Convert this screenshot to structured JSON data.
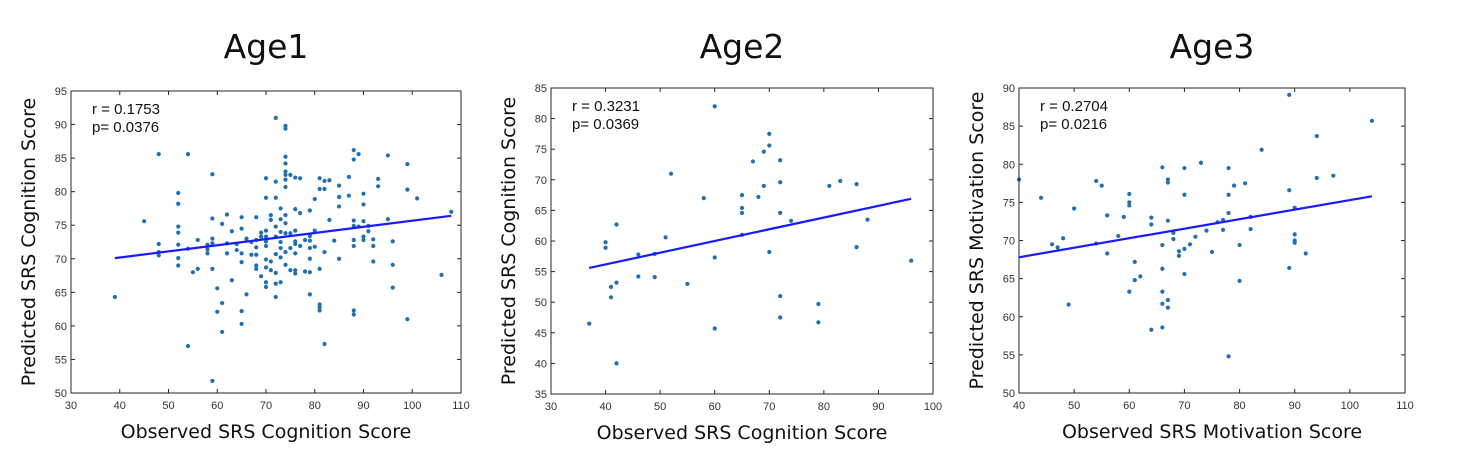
{
  "chart_data": [
    {
      "type": "scatter",
      "title": "Age1",
      "xlabel": "Observed SRS Cognition Score",
      "ylabel": "Predicted SRS Cognition Score",
      "xlim": [
        30,
        110
      ],
      "ylim": [
        50,
        95
      ],
      "xticks": [
        "30",
        "40",
        "50",
        "60",
        "70",
        "80",
        "90",
        "100",
        "110"
      ],
      "yticks": [
        "50",
        "55",
        "60",
        "65",
        "70",
        "75",
        "80",
        "85",
        "90",
        "95"
      ],
      "annotations": [
        "r = 0.1753",
        "p= 0.0376"
      ],
      "point_color": "#1f6fb4",
      "fit_color": "#1a1aff",
      "fit_line": {
        "x": [
          39,
          108
        ],
        "y": [
          70.1,
          76.4
        ]
      },
      "points": [
        [
          39,
          64.3
        ],
        [
          45,
          75.6
        ],
        [
          48,
          85.6
        ],
        [
          48,
          72.2
        ],
        [
          48,
          71.0
        ],
        [
          48,
          70.5
        ],
        [
          52,
          79.8
        ],
        [
          52,
          78.2
        ],
        [
          52,
          74.8
        ],
        [
          52,
          73.9
        ],
        [
          52,
          72.1
        ],
        [
          52,
          70.1
        ],
        [
          52,
          69.0
        ],
        [
          54,
          85.6
        ],
        [
          54,
          57.0
        ],
        [
          54,
          71.5
        ],
        [
          55,
          68.0
        ],
        [
          56,
          72.8
        ],
        [
          56,
          68.5
        ],
        [
          58,
          72.1
        ],
        [
          58,
          71.4
        ],
        [
          58,
          70.8
        ],
        [
          59,
          82.6
        ],
        [
          59,
          76.0
        ],
        [
          59,
          73.0
        ],
        [
          59,
          72.3
        ],
        [
          59,
          68.5
        ],
        [
          59,
          51.8
        ],
        [
          60,
          62.1
        ],
        [
          60,
          65.6
        ],
        [
          61,
          75.2
        ],
        [
          61,
          63.4
        ],
        [
          61,
          59.1
        ],
        [
          62,
          76.6
        ],
        [
          62,
          72.3
        ],
        [
          62,
          70.8
        ],
        [
          63,
          74.1
        ],
        [
          63,
          66.8
        ],
        [
          64,
          72.2
        ],
        [
          64,
          71.3
        ],
        [
          65,
          76.2
        ],
        [
          65,
          74.5
        ],
        [
          65,
          70.8
        ],
        [
          65,
          69.5
        ],
        [
          65,
          62.2
        ],
        [
          65,
          60.3
        ],
        [
          66,
          73.0
        ],
        [
          66,
          64.7
        ],
        [
          67,
          72.5
        ],
        [
          67,
          70.6
        ],
        [
          68,
          76.2
        ],
        [
          68,
          72.8
        ],
        [
          68,
          71.7
        ],
        [
          68,
          70.6
        ],
        [
          68,
          69.0
        ],
        [
          68,
          68.5
        ],
        [
          69,
          73.9
        ],
        [
          69,
          73.3
        ],
        [
          69,
          67.4
        ],
        [
          70,
          82.0
        ],
        [
          70,
          79.1
        ],
        [
          70,
          74.2
        ],
        [
          70,
          73.3
        ],
        [
          70,
          72.6
        ],
        [
          70,
          71.9
        ],
        [
          70,
          69.9
        ],
        [
          70,
          68.7
        ],
        [
          70,
          66.5
        ],
        [
          70,
          65.8
        ],
        [
          71,
          76.5
        ],
        [
          71,
          75.8
        ],
        [
          71,
          69.6
        ],
        [
          71,
          68.3
        ],
        [
          72,
          91.0
        ],
        [
          72,
          81.5
        ],
        [
          72,
          79.1
        ],
        [
          72,
          74.8
        ],
        [
          72,
          73.3
        ],
        [
          72,
          70.7
        ],
        [
          72,
          67.9
        ],
        [
          72,
          66.3
        ],
        [
          72,
          64.3
        ],
        [
          73,
          77.5
        ],
        [
          73,
          75.9
        ],
        [
          73,
          74.0
        ],
        [
          73,
          72.5
        ],
        [
          73,
          71.6
        ],
        [
          73,
          70.2
        ],
        [
          73,
          66.5
        ],
        [
          74,
          89.8
        ],
        [
          74,
          89.4
        ],
        [
          74,
          85.2
        ],
        [
          74,
          84.2
        ],
        [
          74,
          83.0
        ],
        [
          74,
          82.5
        ],
        [
          74,
          81.8
        ],
        [
          74,
          80.7
        ],
        [
          74,
          76.5
        ],
        [
          74,
          75.3
        ],
        [
          74,
          73.8
        ],
        [
          74,
          71.0
        ],
        [
          74,
          69.1
        ],
        [
          75,
          82.5
        ],
        [
          75,
          73.8
        ],
        [
          75,
          71.6
        ],
        [
          75,
          68.3
        ],
        [
          76,
          82.1
        ],
        [
          76,
          77.4
        ],
        [
          76,
          74.2
        ],
        [
          76,
          72.6
        ],
        [
          76,
          72.2
        ],
        [
          76,
          70.8
        ],
        [
          76,
          68.3
        ],
        [
          76,
          67.8
        ],
        [
          77,
          82.0
        ],
        [
          77,
          76.8
        ],
        [
          77,
          71.9
        ],
        [
          78,
          72.8
        ],
        [
          78,
          68.1
        ],
        [
          79,
          77.2
        ],
        [
          79,
          73.4
        ],
        [
          79,
          72.7
        ],
        [
          79,
          71.6
        ],
        [
          79,
          70.0
        ],
        [
          79,
          68.0
        ],
        [
          79,
          64.7
        ],
        [
          80,
          78.9
        ],
        [
          80,
          74.2
        ],
        [
          80,
          71.8
        ],
        [
          81,
          82.0
        ],
        [
          81,
          80.4
        ],
        [
          81,
          68.5
        ],
        [
          81,
          63.2
        ],
        [
          81,
          62.8
        ],
        [
          81,
          62.3
        ],
        [
          82,
          81.6
        ],
        [
          82,
          80.4
        ],
        [
          82,
          71.0
        ],
        [
          82,
          57.3
        ],
        [
          83,
          81.7
        ],
        [
          83,
          75.8
        ],
        [
          84,
          72.7
        ],
        [
          85,
          80.9
        ],
        [
          85,
          79.2
        ],
        [
          85,
          77.8
        ],
        [
          85,
          70.0
        ],
        [
          87,
          82.2
        ],
        [
          87,
          79.4
        ],
        [
          88,
          86.2
        ],
        [
          88,
          84.8
        ],
        [
          88,
          75.7
        ],
        [
          88,
          74.9
        ],
        [
          88,
          72.8
        ],
        [
          88,
          71.9
        ],
        [
          88,
          62.3
        ],
        [
          88,
          61.7
        ],
        [
          89,
          85.6
        ],
        [
          89,
          74.8
        ],
        [
          90,
          79.7
        ],
        [
          90,
          78.1
        ],
        [
          90,
          75.6
        ],
        [
          90,
          73.3
        ],
        [
          90,
          72.8
        ],
        [
          91,
          74.9
        ],
        [
          91,
          74.1
        ],
        [
          92,
          72.9
        ],
        [
          92,
          71.9
        ],
        [
          92,
          69.6
        ],
        [
          93,
          81.9
        ],
        [
          93,
          80.8
        ],
        [
          95,
          85.4
        ],
        [
          95,
          75.9
        ],
        [
          96,
          72.6
        ],
        [
          96,
          69.1
        ],
        [
          96,
          65.7
        ],
        [
          99,
          84.1
        ],
        [
          99,
          80.3
        ],
        [
          99,
          61.0
        ],
        [
          101,
          79.0
        ],
        [
          106,
          67.6
        ],
        [
          108,
          77.0
        ]
      ]
    },
    {
      "type": "scatter",
      "title": "Age2",
      "xlabel": "Observed SRS Cognition Score",
      "ylabel": "Predicted SRS Cognition Score",
      "xlim": [
        30,
        100
      ],
      "ylim": [
        35,
        85
      ],
      "xticks": [
        "30",
        "40",
        "50",
        "60",
        "70",
        "80",
        "90",
        "100"
      ],
      "yticks": [
        "35",
        "40",
        "45",
        "50",
        "55",
        "60",
        "65",
        "70",
        "75",
        "80",
        "85"
      ],
      "annotations": [
        "r = 0.3231",
        "p= 0.0369"
      ],
      "point_color": "#1f6fb4",
      "fit_color": "#1a1aff",
      "fit_line": {
        "x": [
          37,
          96
        ],
        "y": [
          55.6,
          66.9
        ]
      },
      "points": [
        [
          37,
          46.5
        ],
        [
          40,
          59.8
        ],
        [
          40,
          58.9
        ],
        [
          41,
          52.5
        ],
        [
          41,
          50.8
        ],
        [
          42,
          62.7
        ],
        [
          42,
          53.2
        ],
        [
          42,
          40.0
        ],
        [
          46,
          57.8
        ],
        [
          46,
          54.2
        ],
        [
          49,
          57.9
        ],
        [
          49,
          54.1
        ],
        [
          51,
          60.6
        ],
        [
          52,
          71.0
        ],
        [
          55,
          53.0
        ],
        [
          58,
          67.0
        ],
        [
          60,
          82.0
        ],
        [
          60,
          57.3
        ],
        [
          60,
          45.7
        ],
        [
          65,
          67.5
        ],
        [
          65,
          65.4
        ],
        [
          65,
          64.6
        ],
        [
          65,
          61.0
        ],
        [
          67,
          73.0
        ],
        [
          68,
          67.2
        ],
        [
          69,
          74.6
        ],
        [
          69,
          69.0
        ],
        [
          70,
          77.5
        ],
        [
          70,
          75.6
        ],
        [
          70,
          58.2
        ],
        [
          72,
          73.2
        ],
        [
          72,
          69.6
        ],
        [
          72,
          64.6
        ],
        [
          72,
          51.0
        ],
        [
          72,
          47.5
        ],
        [
          74,
          63.3
        ],
        [
          79,
          49.7
        ],
        [
          79,
          46.7
        ],
        [
          81,
          69.0
        ],
        [
          83,
          69.8
        ],
        [
          86,
          69.3
        ],
        [
          86,
          59.0
        ],
        [
          88,
          63.5
        ],
        [
          96,
          56.8
        ]
      ]
    },
    {
      "type": "scatter",
      "title": "Age3",
      "xlabel": "Observed SRS Motivation Score",
      "ylabel": "Predicted SRS Motivation Score",
      "xlim": [
        40,
        110
      ],
      "ylim": [
        50,
        90
      ],
      "xticks": [
        "40",
        "50",
        "60",
        "70",
        "80",
        "90",
        "100",
        "110"
      ],
      "yticks": [
        "50",
        "55",
        "60",
        "65",
        "70",
        "75",
        "80",
        "85",
        "90"
      ],
      "annotations": [
        "r = 0.2704",
        "p= 0.0216"
      ],
      "point_color": "#1f6fb4",
      "fit_color": "#1a1aff",
      "fit_line": {
        "x": [
          40,
          104
        ],
        "y": [
          67.8,
          75.8
        ]
      },
      "points": [
        [
          40,
          78.0
        ],
        [
          44,
          75.6
        ],
        [
          46,
          69.5
        ],
        [
          47,
          69.1
        ],
        [
          48,
          70.3
        ],
        [
          49,
          61.6
        ],
        [
          50,
          74.2
        ],
        [
          54,
          77.8
        ],
        [
          54,
          69.6
        ],
        [
          55,
          77.2
        ],
        [
          56,
          73.3
        ],
        [
          56,
          68.3
        ],
        [
          58,
          70.6
        ],
        [
          59,
          73.1
        ],
        [
          60,
          76.1
        ],
        [
          60,
          75.0
        ],
        [
          60,
          74.6
        ],
        [
          60,
          63.3
        ],
        [
          61,
          67.2
        ],
        [
          61,
          64.8
        ],
        [
          62,
          65.3
        ],
        [
          64,
          73.0
        ],
        [
          64,
          72.1
        ],
        [
          64,
          58.3
        ],
        [
          66,
          79.6
        ],
        [
          66,
          69.4
        ],
        [
          66,
          66.3
        ],
        [
          66,
          63.3
        ],
        [
          66,
          58.6
        ],
        [
          66,
          61.7
        ],
        [
          67,
          78.0
        ],
        [
          67,
          77.6
        ],
        [
          67,
          72.6
        ],
        [
          67,
          62.2
        ],
        [
          67,
          61.2
        ],
        [
          68,
          71.0
        ],
        [
          68,
          70.2
        ],
        [
          69,
          68.6
        ],
        [
          69,
          68.0
        ],
        [
          70,
          79.5
        ],
        [
          70,
          76.0
        ],
        [
          70,
          68.9
        ],
        [
          70,
          65.6
        ],
        [
          71,
          69.5
        ],
        [
          72,
          70.5
        ],
        [
          73,
          80.2
        ],
        [
          74,
          71.3
        ],
        [
          75,
          68.5
        ],
        [
          76,
          72.4
        ],
        [
          77,
          72.7
        ],
        [
          77,
          71.4
        ],
        [
          78,
          79.5
        ],
        [
          78,
          76.0
        ],
        [
          78,
          73.6
        ],
        [
          78,
          54.8
        ],
        [
          79,
          77.2
        ],
        [
          80,
          69.4
        ],
        [
          80,
          64.7
        ],
        [
          81,
          77.5
        ],
        [
          82,
          73.1
        ],
        [
          82,
          71.5
        ],
        [
          84,
          81.9
        ],
        [
          89,
          89.1
        ],
        [
          89,
          76.6
        ],
        [
          89,
          66.4
        ],
        [
          90,
          74.3
        ],
        [
          90,
          70.8
        ],
        [
          90,
          70.0
        ],
        [
          90,
          69.7
        ],
        [
          92,
          68.3
        ],
        [
          94,
          83.7
        ],
        [
          94,
          78.2
        ],
        [
          97,
          78.5
        ],
        [
          104,
          85.7
        ]
      ]
    }
  ]
}
